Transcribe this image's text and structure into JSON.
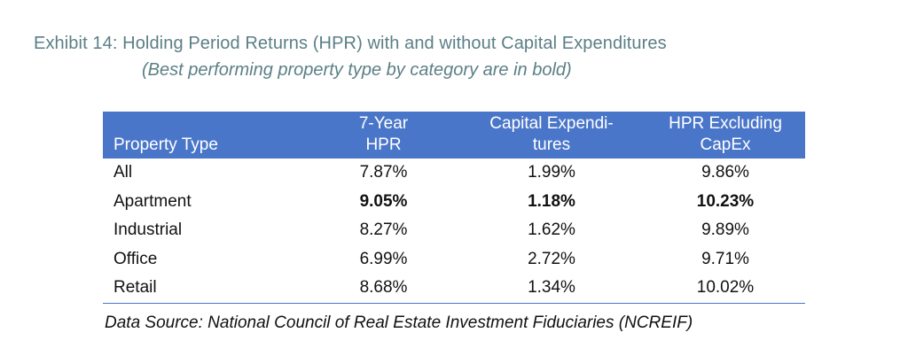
{
  "title": "Exhibit 14: Holding Period Returns (HPR) with and without Capital Expenditures",
  "subtitle": "(Best performing property type by category are in bold)",
  "table": {
    "headers": {
      "property_type": "Property Type",
      "hpr_line1": "7-Year",
      "hpr_line2": "HPR",
      "capex_line1": "Capital Expendi-",
      "capex_line2": "tures",
      "excl_line1": "HPR Excluding",
      "excl_line2": "CapEx"
    },
    "header_color": "#4a76c9",
    "rows": [
      {
        "type": "All",
        "hpr": "7.87%",
        "capex": "1.99%",
        "excl": "9.86%"
      },
      {
        "type": "Apartment",
        "hpr": "9.05%",
        "capex": "1.18%",
        "excl": "10.23%"
      },
      {
        "type": "Industrial",
        "hpr": "8.27%",
        "capex": "1.62%",
        "excl": "9.89%"
      },
      {
        "type": "Office",
        "hpr": "6.99%",
        "capex": "2.72%",
        "excl": "9.71%"
      },
      {
        "type": "Retail",
        "hpr": "8.68%",
        "capex": "1.34%",
        "excl": "10.02%"
      }
    ]
  },
  "source": "Data Source: National Council of Real Estate Investment Fiduciaries (NCREIF)"
}
